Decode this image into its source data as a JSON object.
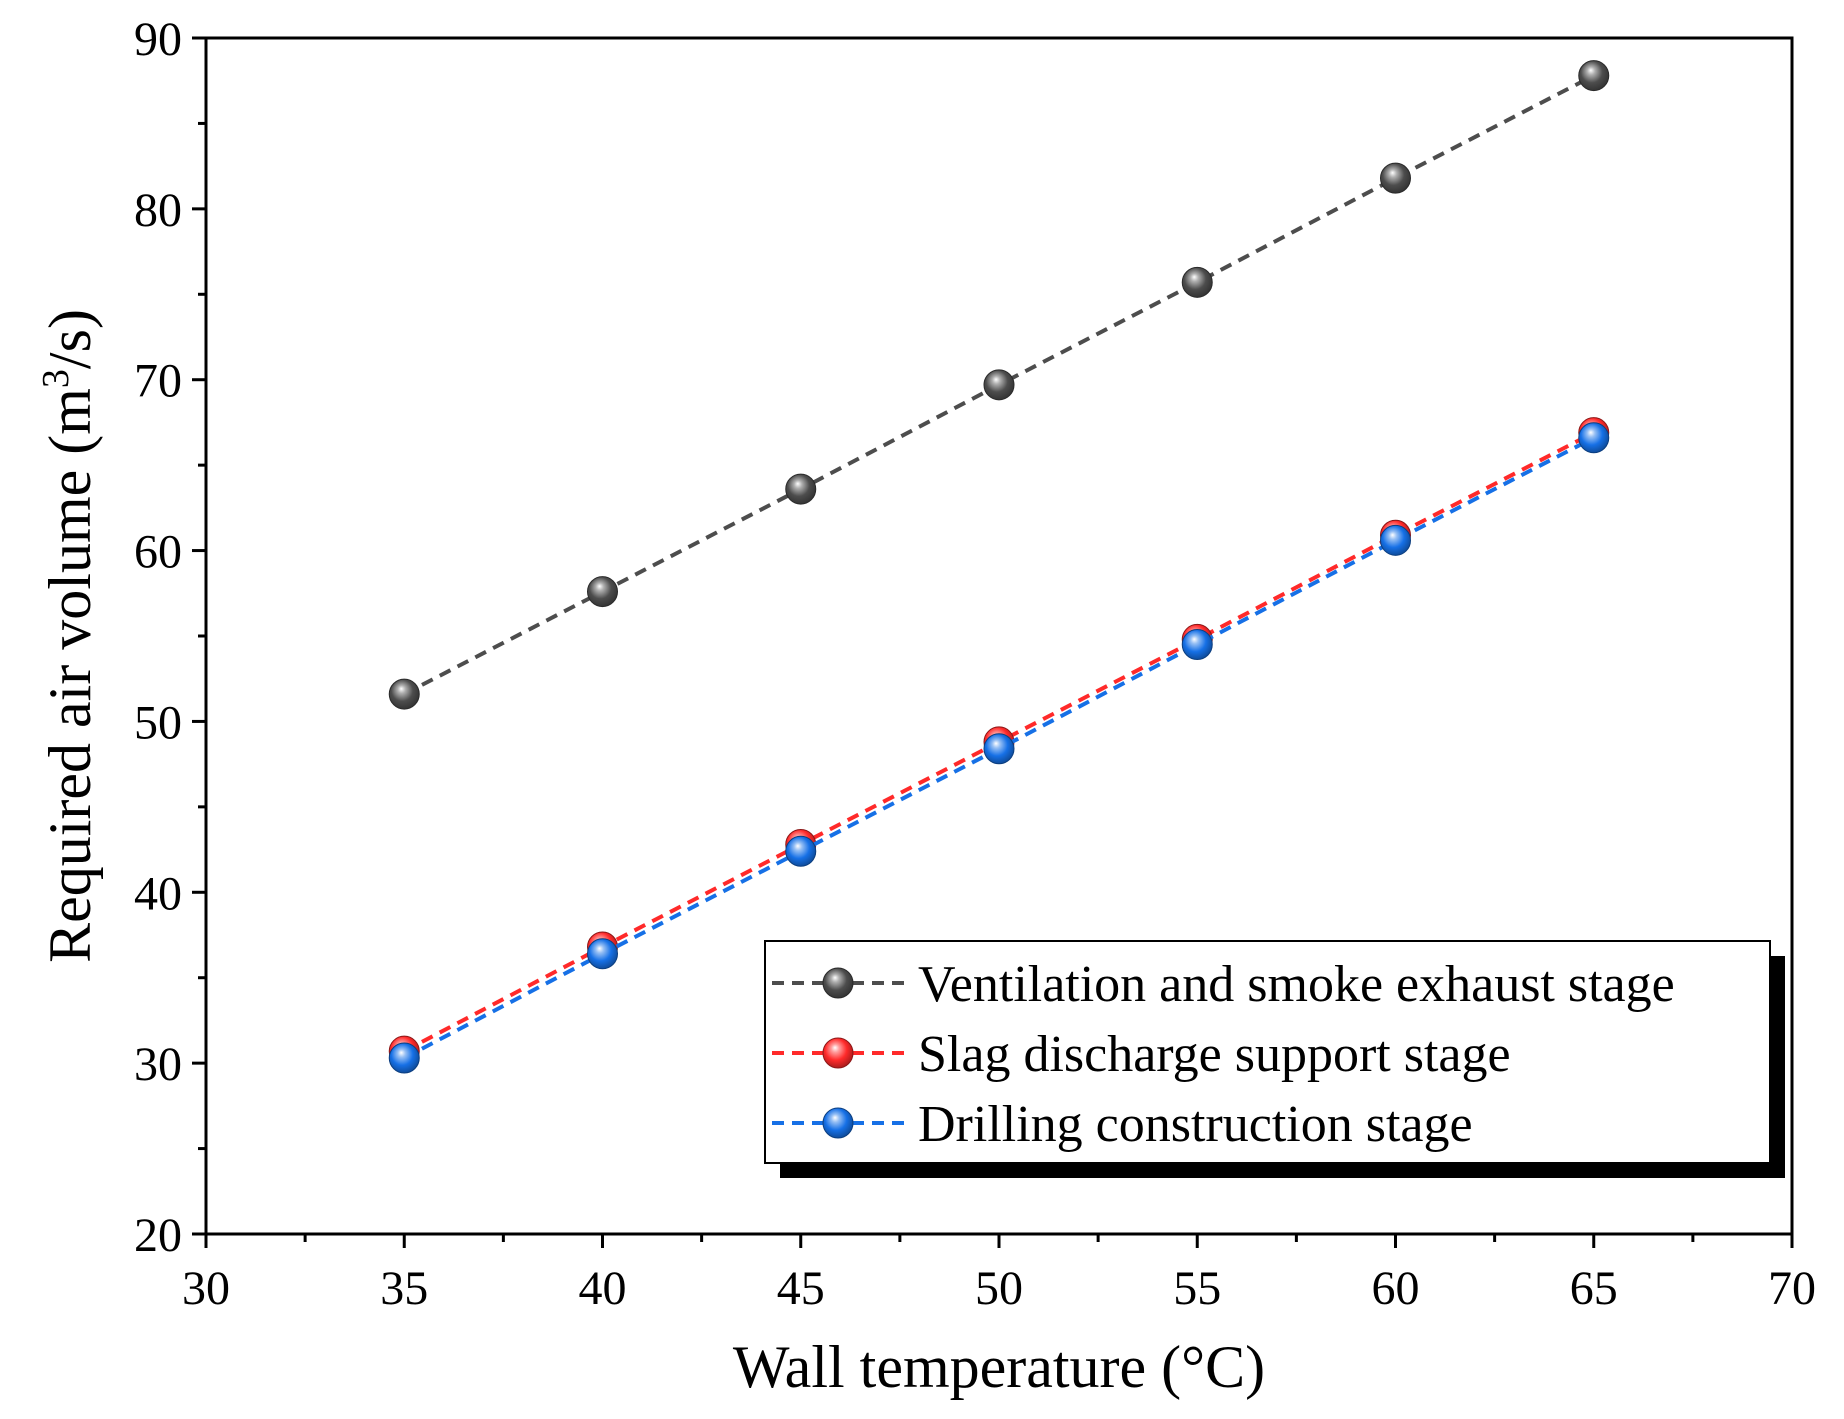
{
  "chart_data": {
    "type": "line",
    "title": "",
    "xlabel": "Wall temperature (°C)",
    "ylabel_main": "Required air volume (m",
    "ylabel_sup": "3",
    "ylabel_end": "/s)",
    "xlim": [
      30,
      70
    ],
    "ylim": [
      20,
      90
    ],
    "xticks": [
      30,
      35,
      40,
      45,
      50,
      55,
      60,
      65,
      70
    ],
    "yticks": [
      20,
      30,
      40,
      50,
      60,
      70,
      80,
      90
    ],
    "grid": false,
    "legend_position": "bottom-right",
    "x": [
      35,
      40,
      45,
      50,
      55,
      60,
      65
    ],
    "series": [
      {
        "name": "Ventilation and smoke exhaust stage",
        "color": "#4d4d4d",
        "marker": "sphere",
        "line": "dashed",
        "values": [
          51.6,
          57.6,
          63.6,
          69.7,
          75.7,
          81.8,
          87.8
        ]
      },
      {
        "name": "Slag discharge support stage",
        "color": "#ff2a2a",
        "marker": "sphere",
        "line": "dashed",
        "values": [
          30.7,
          36.8,
          42.8,
          48.8,
          54.8,
          60.9,
          66.9
        ]
      },
      {
        "name": "Drilling construction stage",
        "color": "#1670e6",
        "marker": "sphere",
        "line": "dashed",
        "values": [
          30.3,
          36.4,
          42.4,
          48.4,
          54.5,
          60.6,
          66.6
        ]
      }
    ]
  }
}
